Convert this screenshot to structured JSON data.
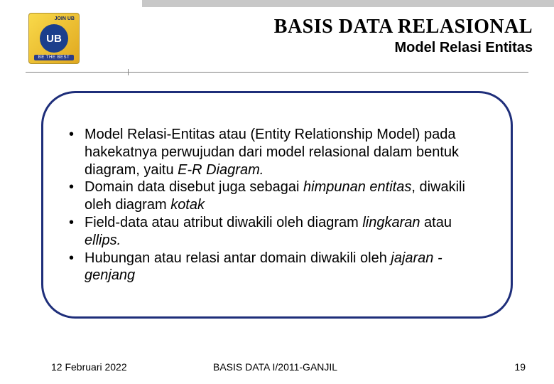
{
  "logo": {
    "top_text": "JOIN UB",
    "center": "UB",
    "bottom_text": "BE THE BEST"
  },
  "header": {
    "title": "BASIS DATA RELASIONAL",
    "subtitle": "Model Relasi Entitas"
  },
  "bullets": [
    {
      "segments": [
        {
          "t": "Model Relasi-Entitas atau (Entity Relationship Model) pada hakekatnya perwujudan dari model relasional dalam bentuk diagram, yaitu ",
          "i": false
        },
        {
          "t": "E-R Diagram.",
          "i": true
        }
      ]
    },
    {
      "segments": [
        {
          "t": "Domain data disebut juga sebagai ",
          "i": false
        },
        {
          "t": "himpunan entitas",
          "i": true
        },
        {
          "t": ", diwakili oleh diagram ",
          "i": false
        },
        {
          "t": "kotak",
          "i": true
        }
      ]
    },
    {
      "segments": [
        {
          "t": "Field-data atau atribut diwakili oleh diagram ",
          "i": false
        },
        {
          "t": "lingkaran",
          "i": true
        },
        {
          "t": " atau ",
          "i": false
        },
        {
          "t": "ellips.",
          "i": true
        }
      ]
    },
    {
      "segments": [
        {
          "t": "Hubungan atau relasi antar domain diwakili oleh ",
          "i": false
        },
        {
          "t": "jajaran -genjang",
          "i": true
        }
      ]
    }
  ],
  "footer": {
    "date": "12 Februari 2022",
    "course": "BASIS DATA I/2011-GANJIL",
    "page": "19"
  },
  "colors": {
    "border": "#1e2e7a",
    "topbar": "#c8c8c8",
    "hline": "#808080"
  }
}
